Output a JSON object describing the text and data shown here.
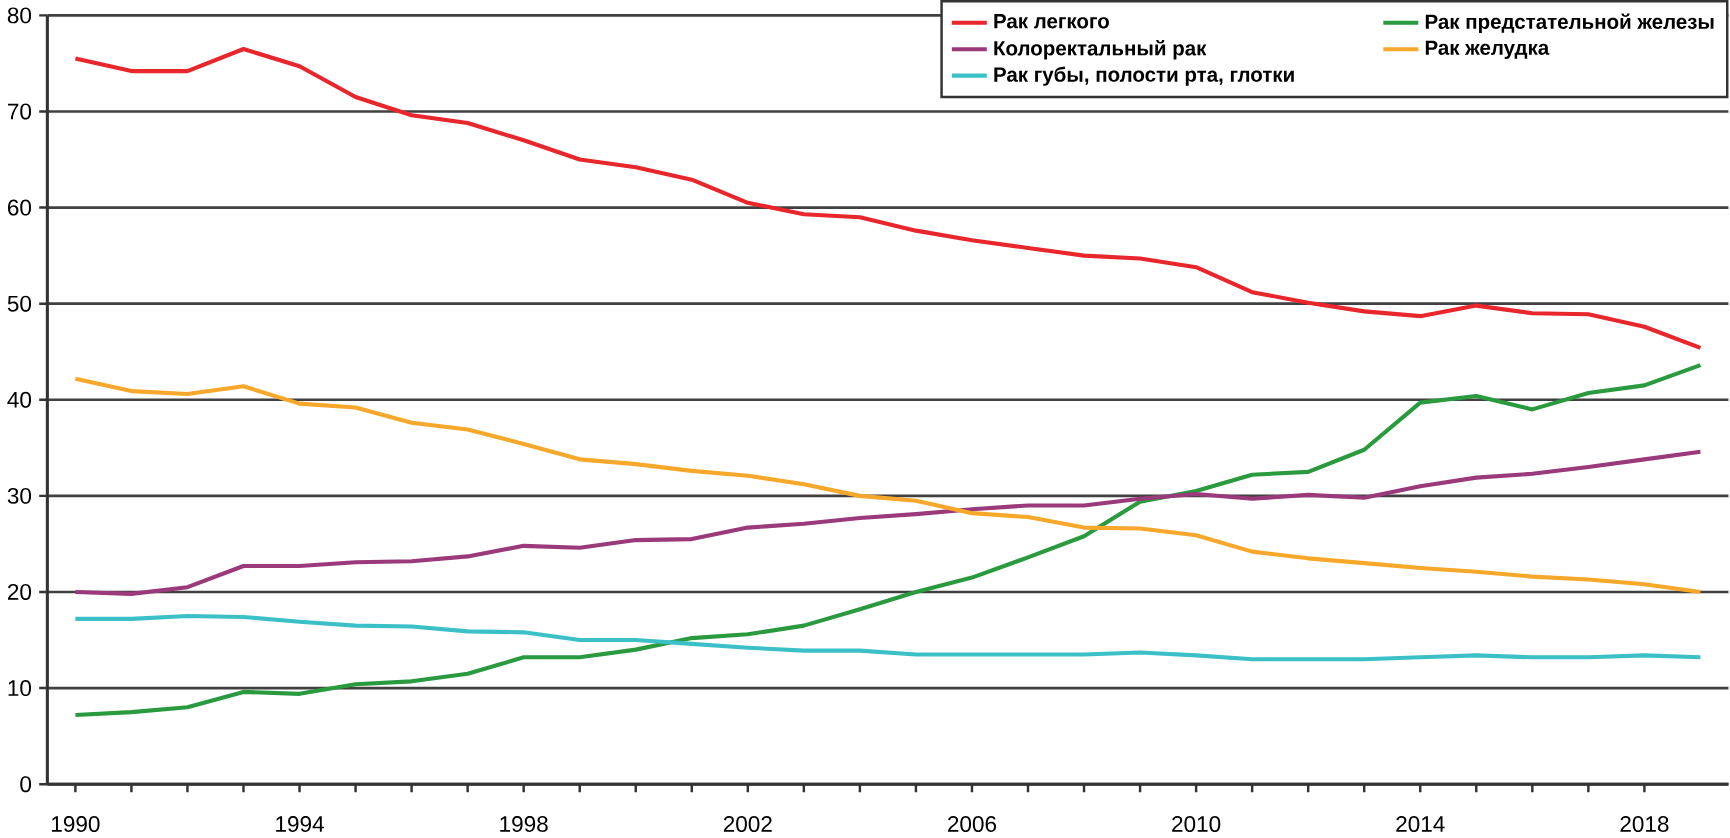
{
  "chart_data": {
    "type": "line",
    "x": [
      1990,
      1991,
      1992,
      1993,
      1994,
      1995,
      1996,
      1997,
      1998,
      1999,
      2000,
      2001,
      2002,
      2003,
      2004,
      2005,
      2006,
      2007,
      2008,
      2009,
      2010,
      2011,
      2012,
      2013,
      2014,
      2015,
      2016,
      2017,
      2018,
      2019
    ],
    "xlim": [
      1989.5,
      2019.5
    ],
    "xticks": [
      1990,
      1994,
      1998,
      2002,
      2006,
      2010,
      2014,
      2018
    ],
    "ylim": [
      0,
      80
    ],
    "yticks": [
      0,
      10,
      20,
      30,
      40,
      50,
      60,
      70,
      80
    ],
    "grid": "y",
    "legend": "top right",
    "marker": "none",
    "line_style": "solid",
    "series": [
      {
        "name": "Рак легкого",
        "color": "#e8262b",
        "values": [
          75.5,
          74.2,
          74.2,
          76.5,
          74.7,
          71.5,
          69.6,
          68.8,
          67,
          65,
          64.2,
          62.9,
          60.5,
          59.3,
          59,
          57.6,
          56.6,
          55.8,
          55,
          54.7,
          53.8,
          51.2,
          50.1,
          49.2,
          48.7,
          49.8,
          49,
          48.9,
          47.6,
          45.4
        ]
      },
      {
        "name": "Рак предстательной железы",
        "color": "#2a9a3f",
        "values": [
          7.2,
          7.5,
          8,
          9.6,
          9.4,
          10.4,
          10.7,
          11.5,
          13.2,
          13.2,
          14,
          15.2,
          15.6,
          16.5,
          18.2,
          20,
          21.5,
          23.6,
          25.8,
          29.4,
          30.5,
          32.2,
          32.5,
          34.8,
          39.7,
          40.4,
          39,
          40.7,
          41.5,
          43.6
        ]
      },
      {
        "name": "Колоректальный рак",
        "color": "#9b3a7a",
        "values": [
          20,
          19.8,
          20.5,
          22.7,
          22.7,
          23.1,
          23.2,
          23.7,
          24.8,
          24.6,
          25.4,
          25.5,
          26.7,
          27.1,
          27.7,
          28.1,
          28.6,
          29,
          29,
          29.7,
          30.2,
          29.7,
          30.1,
          29.8,
          31,
          31.9,
          32.3,
          33,
          33.8,
          34.6
        ]
      },
      {
        "name": "Рак желудка",
        "color": "#f7a72a",
        "values": [
          42.2,
          40.9,
          40.6,
          41.4,
          39.6,
          39.2,
          37.6,
          36.9,
          35.4,
          33.8,
          33.3,
          32.6,
          32.1,
          31.2,
          30,
          29.5,
          28.2,
          27.8,
          26.7,
          26.6,
          25.9,
          24.2,
          23.5,
          23,
          22.5,
          22.1,
          21.6,
          21.3,
          20.8,
          20
        ]
      },
      {
        "name": "Рак губы, полости рта, глотки",
        "color": "#3cc0c8",
        "values": [
          17.2,
          17.2,
          17.5,
          17.4,
          16.9,
          16.5,
          16.4,
          15.9,
          15.8,
          15,
          15,
          14.6,
          14.2,
          13.9,
          13.9,
          13.5,
          13.5,
          13.5,
          13.5,
          13.7,
          13.4,
          13,
          13,
          13,
          13.2,
          13.4,
          13.2,
          13.2,
          13.4,
          13.2
        ]
      }
    ]
  }
}
